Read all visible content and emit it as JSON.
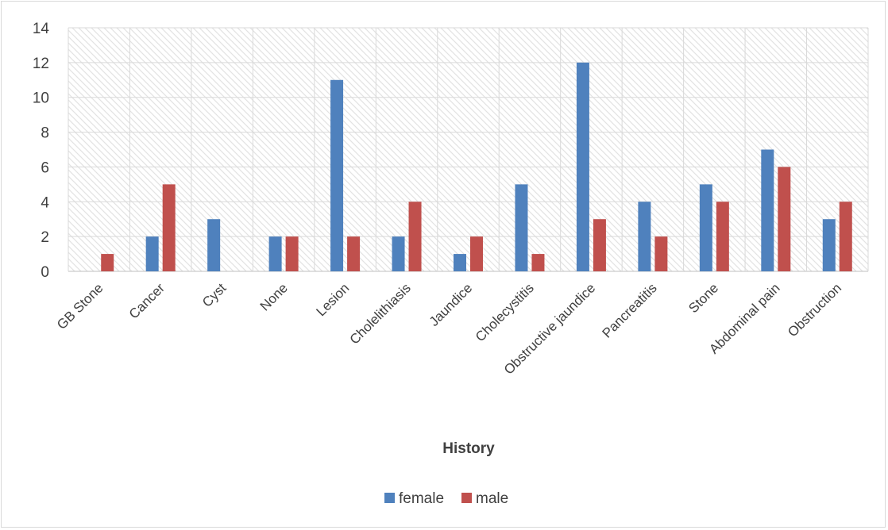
{
  "chart_data": {
    "type": "bar",
    "categories": [
      "GB Stone",
      "Cancer",
      "Cyst",
      "None",
      "Lesion",
      "Cholelithiasis",
      "Jaundice",
      "Cholecystitis",
      "Obstructive jaundice",
      "Pancreatitis",
      "Stone",
      "Abdominal pain",
      "Obstruction"
    ],
    "series": [
      {
        "name": "female",
        "color": "#4f81bd",
        "values": [
          0,
          2,
          3,
          2,
          11,
          2,
          1,
          5,
          12,
          4,
          5,
          7,
          3
        ]
      },
      {
        "name": "male",
        "color": "#c0504d",
        "values": [
          1,
          5,
          0,
          2,
          2,
          4,
          2,
          1,
          3,
          2,
          4,
          6,
          4
        ]
      }
    ],
    "title": "",
    "xlabel": "History",
    "ylabel": "",
    "ylim": [
      0,
      14
    ],
    "yticks": [
      0,
      2,
      4,
      6,
      8,
      10,
      12,
      14
    ],
    "grid": true,
    "legend": "bottom"
  }
}
